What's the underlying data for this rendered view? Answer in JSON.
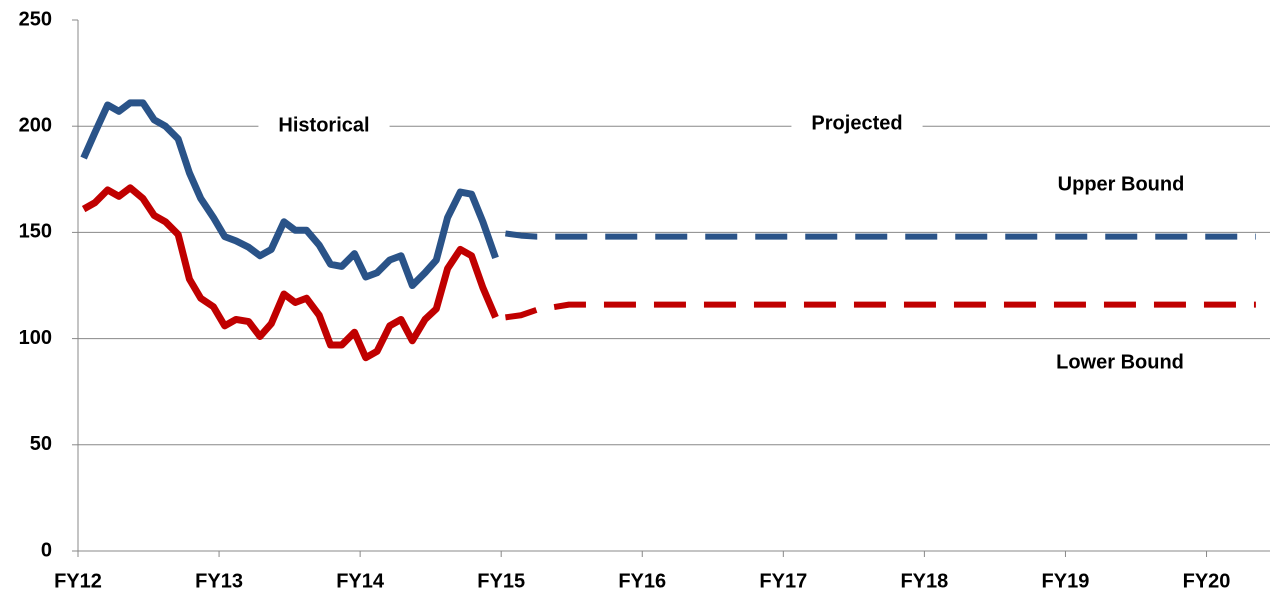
{
  "chart_data": {
    "type": "line",
    "annotations": [
      "Historical",
      "Projected",
      "Upper Bound",
      "Lower Bound"
    ],
    "xlim": [
      12,
      20.45
    ],
    "xticks": [
      {
        "value": 12,
        "label": "FY12"
      },
      {
        "value": 13,
        "label": "FY13"
      },
      {
        "value": 14,
        "label": "FY14"
      },
      {
        "value": 15,
        "label": "FY15"
      },
      {
        "value": 16,
        "label": "FY16"
      },
      {
        "value": 17,
        "label": "FY17"
      },
      {
        "value": 18,
        "label": "FY18"
      },
      {
        "value": 19,
        "label": "FY19"
      },
      {
        "value": 20,
        "label": "FY20"
      }
    ],
    "ylim": [
      0,
      250
    ],
    "yticks": [
      0,
      50,
      100,
      150,
      200,
      250
    ],
    "grid": true,
    "series": [
      {
        "color": "#2a5388",
        "dashed": false,
        "x": [
          12.04,
          12.12,
          12.21,
          12.29,
          12.37,
          12.46,
          12.54,
          12.62,
          12.71,
          12.79,
          12.87,
          12.96,
          13.04,
          13.12,
          13.21,
          13.29,
          13.37,
          13.46,
          13.54,
          13.62,
          13.71,
          13.79,
          13.87,
          13.96,
          14.04,
          14.12,
          14.21,
          14.29,
          14.37,
          14.46,
          14.54,
          14.62,
          14.71,
          14.79,
          14.87,
          14.96
        ],
        "values": [
          185,
          197,
          210,
          207,
          211,
          211,
          203,
          200,
          194,
          178,
          166,
          157,
          148,
          146,
          143,
          139,
          142,
          155,
          151,
          151,
          144,
          135,
          134,
          140,
          129,
          131,
          137,
          139,
          125,
          131,
          137,
          157,
          169,
          168,
          155,
          138
        ]
      },
      {
        "color": "#2a5388",
        "dashed": true,
        "x": [
          15.03,
          15.14,
          15.25,
          20.35
        ],
        "values": [
          149.5,
          148.5,
          148,
          148
        ]
      },
      {
        "color": "#c00000",
        "dashed": false,
        "x": [
          12.04,
          12.12,
          12.21,
          12.29,
          12.37,
          12.46,
          12.54,
          12.62,
          12.71,
          12.79,
          12.87,
          12.96,
          13.04,
          13.12,
          13.21,
          13.29,
          13.37,
          13.46,
          13.54,
          13.62,
          13.71,
          13.79,
          13.87,
          13.96,
          14.04,
          14.12,
          14.21,
          14.29,
          14.37,
          14.46,
          14.54,
          14.62,
          14.71,
          14.79,
          14.87,
          14.96
        ],
        "values": [
          161,
          164,
          170,
          167,
          171,
          166,
          158,
          155,
          149,
          128,
          119,
          115,
          106,
          109,
          108,
          101,
          107,
          121,
          117,
          119,
          111,
          97,
          97,
          103,
          91,
          94,
          106,
          109,
          99,
          109,
          114,
          133,
          142,
          139,
          124,
          110
        ]
      },
      {
        "color": "#c00000",
        "dashed": true,
        "x": [
          15.03,
          15.14,
          15.25,
          15.48,
          20.35
        ],
        "values": [
          110,
          111,
          113.5,
          116,
          116
        ]
      }
    ]
  }
}
